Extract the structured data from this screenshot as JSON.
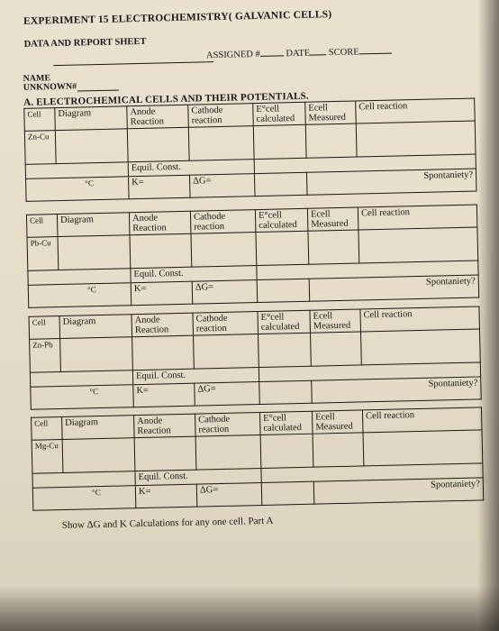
{
  "header": {
    "title": "EXPERIMENT   15 ELECTROCHEMISTRY( GALVANIC CELLS)",
    "subtitle": "DATA AND REPORT SHEET",
    "assigned_label": "ASSIGNED #",
    "date_label": "DATE",
    "score_label": "SCORE",
    "name_label": "NAME",
    "unknown_label": "UNKNOWN#"
  },
  "section": {
    "title": "A.   ELECTROCHEMICAL CELLS AND THEIR POTENTIALS."
  },
  "table_labels": {
    "cell": "Cell",
    "diagram": "Diagram",
    "anode": "Anode Reaction",
    "cathode": "Cathode reaction",
    "e0cell": "E°cell calculated",
    "ecell": "Ecell Measured",
    "cell_reaction": "Cell reaction",
    "equil_const": "Equil. Const.",
    "k": "K=",
    "delta_g": "ΔG=",
    "spontaneity": "Spontaniety?",
    "temp": "°C"
  },
  "cells": [
    {
      "name": "Zn-Cu"
    },
    {
      "name": "Pb-Cu"
    },
    {
      "name": "Zn-Pb"
    },
    {
      "name": "Mg-Cu"
    }
  ],
  "footer": "Show ΔG and K Calculations for any one cell. Part A"
}
